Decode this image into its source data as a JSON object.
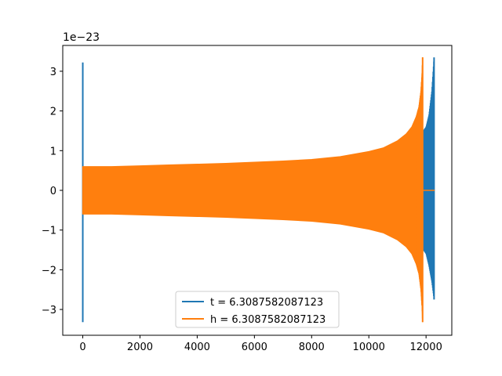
{
  "chart_data": {
    "type": "line",
    "title": "",
    "xlabel": "",
    "ylabel": "",
    "y_offset_label": "1e−23",
    "xlim": [
      -700,
      12900
    ],
    "ylim": [
      -3.65,
      3.65
    ],
    "x_ticks": [
      0,
      2000,
      4000,
      6000,
      8000,
      10000,
      12000
    ],
    "x_tick_labels": [
      "0",
      "2000",
      "4000",
      "6000",
      "8000",
      "10000",
      "12000"
    ],
    "y_ticks": [
      -3,
      -2,
      -1,
      0,
      1,
      2,
      3
    ],
    "y_tick_labels": [
      "−3",
      "−2",
      "−1",
      "0",
      "1",
      "2",
      "3"
    ],
    "grid": false,
    "legend_position": "lower-center",
    "series": [
      {
        "name": "t = 6.3087582087123",
        "color": "#1f77b4",
        "description": "signal with spike near x=0 and merger burst ending near x=12280",
        "spike": {
          "x": 0,
          "ymax": 3.22,
          "ymin": -3.32
        },
        "envelope_x": [
          0,
          2000,
          4000,
          6000,
          8000,
          10000,
          11000,
          11500,
          11800,
          11900,
          12000,
          12100,
          12200,
          12280
        ],
        "envelope_y": [
          0.58,
          0.61,
          0.65,
          0.7,
          0.8,
          0.98,
          1.15,
          1.3,
          1.45,
          1.5,
          1.6,
          1.9,
          2.5,
          3.35
        ],
        "envelope_y_low": [
          -0.58,
          -0.61,
          -0.65,
          -0.7,
          -0.8,
          -0.98,
          -1.15,
          -1.3,
          -1.45,
          -1.5,
          -1.6,
          -1.9,
          -2.3,
          -2.75
        ]
      },
      {
        "name": "h = 6.3087582087123",
        "color": "#ff7f0e",
        "description": "chirp signal with envelope growing toward merger near x=11880",
        "envelope_x": [
          0,
          1000,
          2000,
          3000,
          4000,
          5000,
          6000,
          7000,
          8000,
          9000,
          10000,
          10500,
          11000,
          11300,
          11500,
          11650,
          11750,
          11820,
          11860,
          11880
        ],
        "envelope_y": [
          0.6,
          0.6,
          0.62,
          0.64,
          0.66,
          0.68,
          0.71,
          0.74,
          0.78,
          0.85,
          0.98,
          1.07,
          1.25,
          1.42,
          1.6,
          1.85,
          2.1,
          2.5,
          2.95,
          3.35
        ],
        "envelope_y_low": [
          -0.6,
          -0.6,
          -0.62,
          -0.64,
          -0.66,
          -0.68,
          -0.71,
          -0.74,
          -0.78,
          -0.85,
          -0.98,
          -1.07,
          -1.25,
          -1.42,
          -1.6,
          -1.85,
          -2.1,
          -2.5,
          -2.95,
          -3.32
        ],
        "tail_x": [
          11880,
          12300
        ],
        "tail_y": [
          0,
          0
        ]
      }
    ]
  }
}
